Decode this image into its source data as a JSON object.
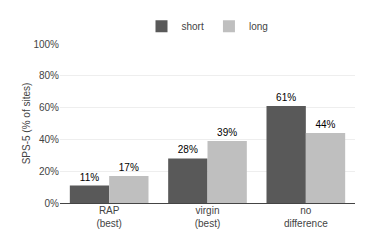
{
  "chart_data": {
    "type": "bar",
    "categories": [
      "RAP\n(best)",
      "virgin\n(best)",
      "no\ndifference"
    ],
    "series": [
      {
        "name": "short",
        "color": "#595959",
        "values": [
          11,
          28,
          61
        ],
        "value_labels": [
          "11%",
          "28%",
          "61%"
        ]
      },
      {
        "name": "long",
        "color": "#bfbfbf",
        "values": [
          17,
          39,
          44
        ],
        "value_labels": [
          "17%",
          "39%",
          "44%"
        ]
      }
    ],
    "ylabel": "SPS-5 (% of sites)",
    "ylim": [
      0,
      100
    ],
    "yticks": [
      {
        "value": 0,
        "label": "0%"
      },
      {
        "value": 20,
        "label": "20%"
      },
      {
        "value": 40,
        "label": "40%"
      },
      {
        "value": 60,
        "label": "60%"
      },
      {
        "value": 80,
        "label": "80%"
      },
      {
        "value": 100,
        "label": "100%"
      }
    ],
    "grid": true,
    "legend": "top",
    "data_labels": true
  }
}
